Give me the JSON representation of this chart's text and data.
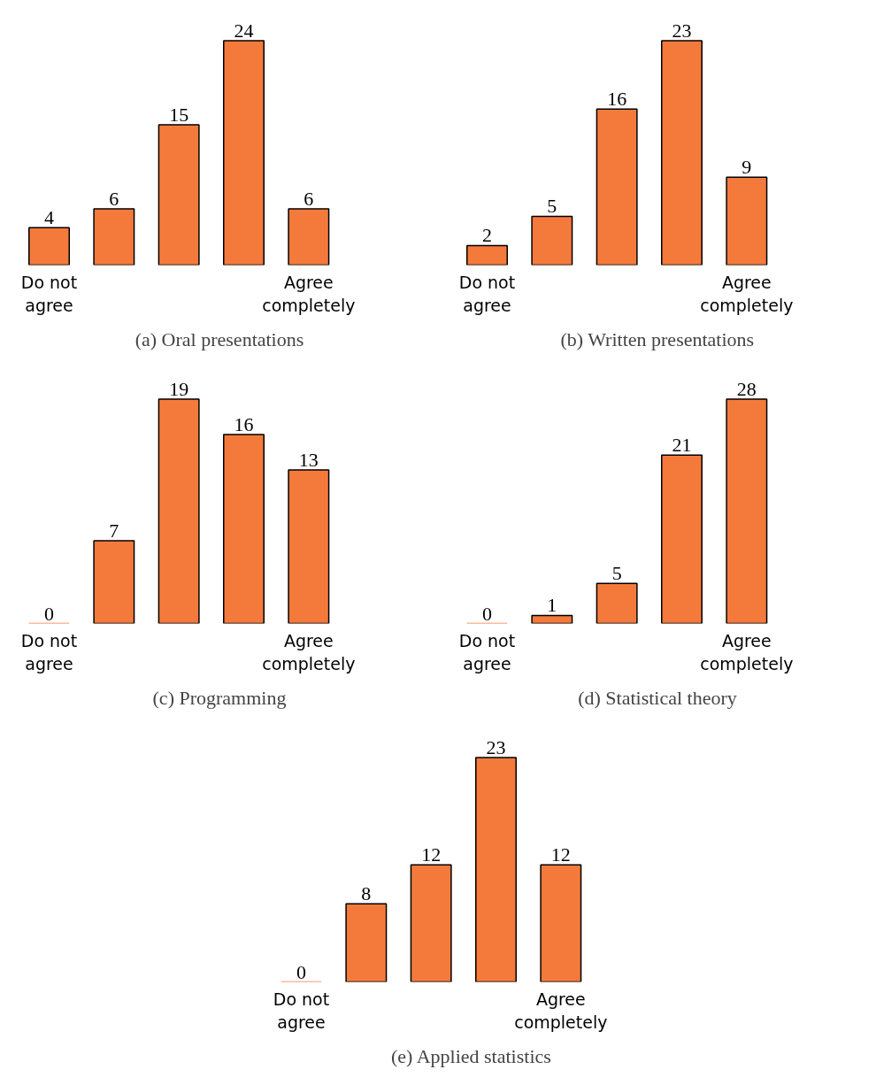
{
  "chart_data": [
    {
      "type": "bar",
      "title": "(a) Oral presentations",
      "categories": [
        "Do not agree",
        null,
        null,
        null,
        "Agree completely"
      ],
      "values": [
        4,
        6,
        15,
        24,
        6
      ],
      "color": "#f47a3c",
      "data_labels": true
    },
    {
      "type": "bar",
      "title": "(b) Written presentations",
      "categories": [
        "Do not agree",
        null,
        null,
        null,
        "Agree completely"
      ],
      "values": [
        2,
        5,
        16,
        23,
        9
      ],
      "color": "#f47a3c",
      "data_labels": true
    },
    {
      "type": "bar",
      "title": "(c) Programming",
      "categories": [
        "Do not agree",
        null,
        null,
        null,
        "Agree completely"
      ],
      "values": [
        0,
        7,
        19,
        16,
        13
      ],
      "color": "#f47a3c",
      "data_labels": true
    },
    {
      "type": "bar",
      "title": "(d) Statistical theory",
      "categories": [
        "Do not agree",
        null,
        null,
        null,
        "Agree completely"
      ],
      "values": [
        0,
        1,
        5,
        21,
        28
      ],
      "color": "#f47a3c",
      "data_labels": true
    },
    {
      "type": "bar",
      "title": "(e) Applied statistics",
      "categories": [
        "Do not agree",
        null,
        null,
        null,
        "Agree completely"
      ],
      "values": [
        0,
        8,
        12,
        23,
        12
      ],
      "color": "#f47a3c",
      "data_labels": true
    }
  ]
}
